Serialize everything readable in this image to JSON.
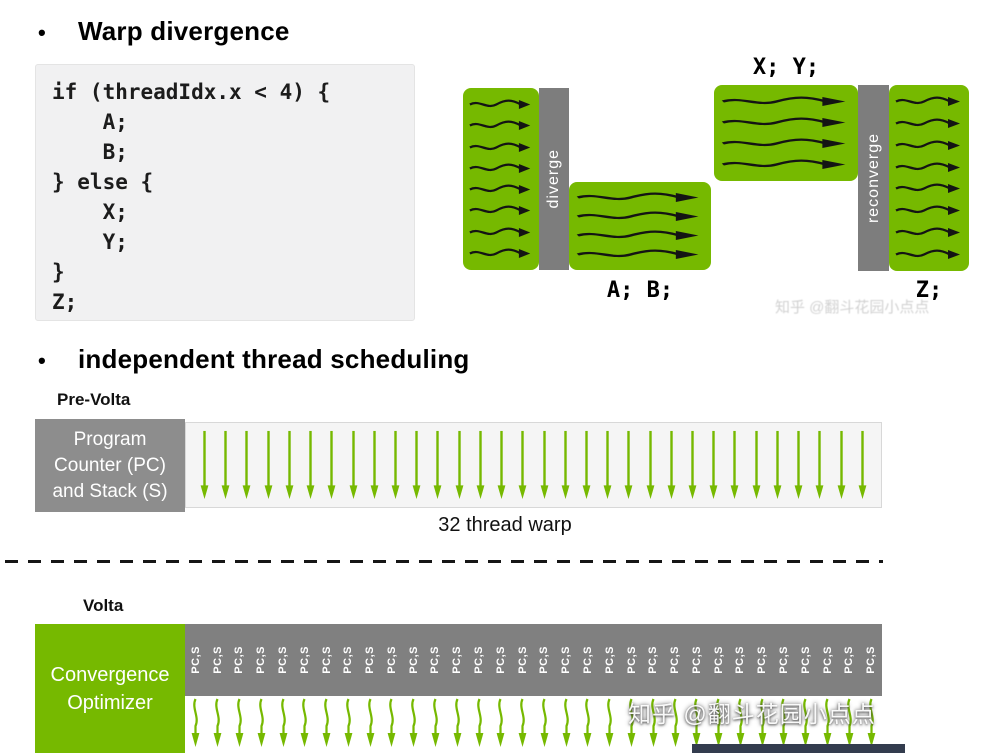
{
  "page": {
    "bullet_char": "•",
    "bullet1": "Warp divergence",
    "bullet2": "independent thread scheduling"
  },
  "code": {
    "lines": [
      "if (threadIdx.x < 4) {",
      "    A;",
      "    B;",
      "} else {",
      "    X;",
      "    Y;",
      "}",
      "Z;"
    ]
  },
  "divergence": {
    "diverge_label": "diverge",
    "reconverge_label": "reconverge",
    "label_top": "X; Y;",
    "label_bottom": "A; B;",
    "label_end": "Z;",
    "full_arrows": 8,
    "split_arrows": 4
  },
  "pre_volta": {
    "title": "Pre-Volta",
    "box_lines": [
      "Program",
      "Counter (PC)",
      "and Stack (S)"
    ],
    "warp_label": "32 thread warp",
    "thread_count": 32
  },
  "volta": {
    "title": "Volta",
    "box_lines": [
      "Convergence",
      "Optimizer"
    ],
    "pcs_label": "PC,S",
    "thread_count": 32
  },
  "watermark": {
    "text": "知乎 @翻斗花园小点点",
    "faint_text": "知乎 @翻斗花园小点点"
  },
  "colors": {
    "green": "#76b900",
    "gray": "#808080"
  }
}
